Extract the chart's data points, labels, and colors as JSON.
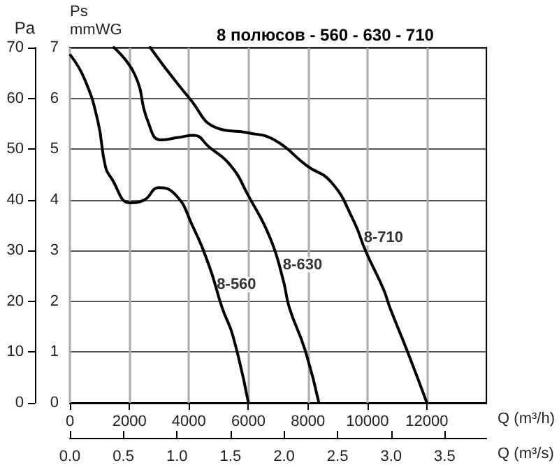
{
  "chart_data": {
    "type": "line",
    "title": "8 полюсов - 560 - 630 - 710",
    "xlabel": "Q (m³/h)",
    "x2label": "Q (m³/s)",
    "ylabel": "Pa",
    "y2label": "Ps\nmmWG",
    "xlim": [
      0,
      14000
    ],
    "xticks": [
      0,
      2000,
      4000,
      6000,
      8000,
      10000,
      12000
    ],
    "x2lim": [
      0,
      3.89
    ],
    "x2ticks": [
      {
        "value": 0,
        "label": "0.0"
      },
      {
        "value": 0.5,
        "label": "0.5"
      },
      {
        "value": 1,
        "label": "1.0"
      },
      {
        "value": 1.5,
        "label": "1.5"
      },
      {
        "value": 2,
        "label": "2.0"
      },
      {
        "value": 2.5,
        "label": "2.5"
      },
      {
        "value": 3,
        "label": "3.0"
      },
      {
        "value": 3.5,
        "label": "3.5"
      }
    ],
    "ylim": [
      0,
      70
    ],
    "yticks": [
      0,
      10,
      20,
      30,
      40,
      50,
      60,
      70
    ],
    "y2lim": [
      0,
      7
    ],
    "y2ticks": [
      0,
      1,
      2,
      3,
      4,
      5,
      6,
      7
    ],
    "grid": true,
    "marker": "none",
    "line_style": "solid",
    "series": [
      {
        "color": "#000000",
        "x": [
          20,
          500,
          940,
          1190,
          1380,
          2040,
          2480,
          2990,
          3580,
          4090,
          4680,
          5120,
          5480,
          6000
        ],
        "values": [
          68.5,
          63.7,
          55.5,
          46.7,
          44.4,
          39.4,
          39.9,
          42.4,
          40.8,
          35.3,
          27,
          18.7,
          13.2,
          0
        ]
      },
      {
        "color": "#000000",
        "x": [
          1480,
          2180,
          2620,
          3060,
          3650,
          4160,
          4680,
          5410,
          6000,
          6730,
          7170,
          7380,
          7900,
          8370
        ],
        "values": [
          70,
          64.7,
          55.5,
          51.8,
          52.3,
          52.7,
          50.4,
          46.7,
          40.8,
          32.5,
          24.2,
          18.7,
          10.5,
          0
        ]
      },
      {
        "color": "#000000",
        "x": [
          2700,
          4020,
          4970,
          6000,
          6870,
          7970,
          8780,
          9510,
          9950,
          10540,
          10760,
          11340,
          12000
        ],
        "values": [
          70,
          60,
          54.1,
          53.2,
          51.8,
          46.7,
          43.5,
          36.2,
          29.8,
          22.4,
          18.7,
          10.2,
          0
        ]
      }
    ],
    "annotations": [
      {
        "text": "8-560",
        "x": 5600,
        "y": 23.3
      },
      {
        "text": "8-630",
        "x": 7820,
        "y": 27.2
      },
      {
        "text": "8-710",
        "x": 10540,
        "y": 32.5
      }
    ]
  }
}
